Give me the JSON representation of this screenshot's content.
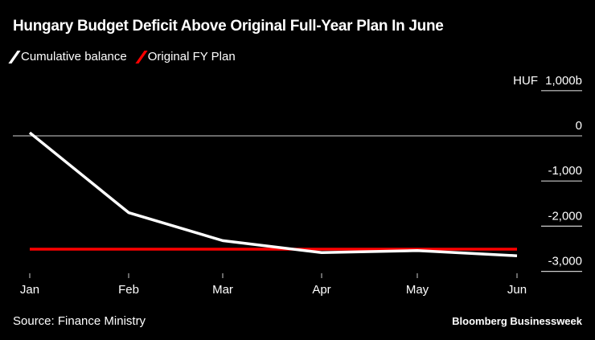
{
  "chart_data": {
    "type": "line",
    "title": "Hungary Budget Deficit Above Original Full-Year Plan In June",
    "categories": [
      "Jan",
      "Feb",
      "Mar",
      "Apr",
      "May",
      "Jun"
    ],
    "series": [
      {
        "name": "Cumulative balance",
        "color": "#ffffff",
        "values": [
          70,
          -1700,
          -2320,
          -2585,
          -2540,
          -2655
        ]
      },
      {
        "name": "Original FY Plan",
        "color": "#ff0000",
        "values": [
          -2510,
          -2510,
          -2510,
          -2510,
          -2510,
          -2510
        ]
      }
    ],
    "y_unit_label": "HUF",
    "y_ticks": [
      1000,
      0,
      -1000,
      -2000,
      -3000
    ],
    "y_tick_labels": [
      "1,000b",
      "0",
      "-1,000",
      "-2,000",
      "-3,000"
    ],
    "ylim": [
      -3000,
      1000
    ],
    "legend": "top-left",
    "source": "Source: Finance Ministry",
    "brand": "Bloomberg Businessweek"
  }
}
